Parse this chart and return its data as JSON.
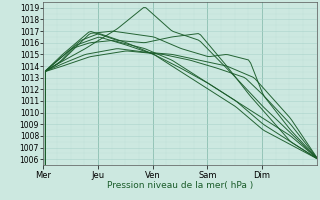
{
  "xlabel": "Pression niveau de la mer( hPa )",
  "ylim": [
    1005.5,
    1019.5
  ],
  "yticks": [
    1006,
    1007,
    1008,
    1009,
    1010,
    1011,
    1012,
    1013,
    1014,
    1015,
    1016,
    1017,
    1018,
    1019
  ],
  "day_labels": [
    "Mer",
    "Jeu",
    "Ven",
    "Sam",
    "Dim"
  ],
  "day_positions": [
    0,
    24,
    48,
    72,
    96
  ],
  "xlim": [
    0,
    120
  ],
  "bg_color": "#cce8e0",
  "grid_color_major": "#aad4cc",
  "grid_color_minor": "#b8dcd6",
  "line_color": "#1a5c2a",
  "vline_color": "#2a7a5a"
}
